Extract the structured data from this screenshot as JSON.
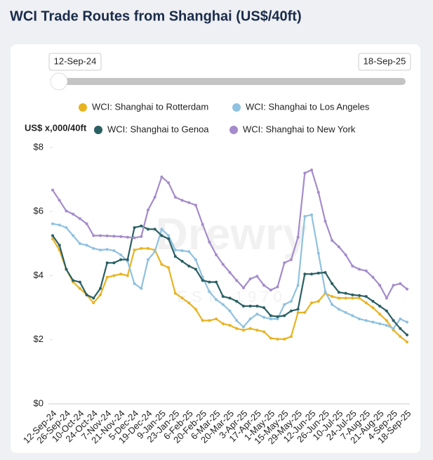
{
  "chart_data": {
    "type": "line",
    "title": "WCI Trade Routes from Shanghai (US$/40ft)",
    "y_label": "US$ x,000/40ft",
    "watermark": "Drewry",
    "watermark_sub": "EST. 1970",
    "categories": [
      "12-Sep-24",
      null,
      "26-Sep-24",
      null,
      "10-Oct-24",
      null,
      "24-Oct-24",
      null,
      "7-Nov-24",
      null,
      "21-Nov-24",
      null,
      "5-Dec-24",
      null,
      "19-Dec-24",
      null,
      "9-Jan-25",
      null,
      "23-Jan-25",
      null,
      "6-Feb-25",
      null,
      "20-Feb-25",
      null,
      "6-Mar-25",
      null,
      "20-Mar-25",
      null,
      "3-Apr-25",
      null,
      "17-Apr-25",
      null,
      "1-May-25",
      null,
      "15-May-25",
      null,
      "29-May-25",
      null,
      "12-Jun-25",
      null,
      "26-Jun-25",
      null,
      "10-Jul-25",
      null,
      "24-Jul-25",
      null,
      "7-Aug-25",
      null,
      "21-Aug-25",
      null,
      "4-Sep-25",
      null,
      "18-Sep-25"
    ],
    "series": [
      {
        "name": "WCI: Shanghai to Rotterdam",
        "color": "#e8b321",
        "values": [
          5.15,
          4.8,
          4.2,
          3.8,
          3.6,
          3.4,
          3.15,
          3.4,
          3.95,
          4.0,
          4.05,
          4.0,
          4.8,
          4.85,
          4.85,
          4.8,
          4.35,
          4.25,
          3.45,
          3.3,
          3.15,
          2.95,
          2.6,
          2.6,
          2.65,
          2.5,
          2.45,
          2.35,
          2.3,
          2.35,
          2.3,
          2.25,
          2.05,
          2.02,
          2.02,
          2.1,
          2.85,
          2.85,
          3.15,
          3.2,
          3.45,
          3.35,
          3.3,
          3.3,
          3.3,
          3.3,
          3.15,
          3.0,
          2.8,
          2.6,
          2.3,
          2.1,
          1.93
        ]
      },
      {
        "name": "WCI: Shanghai to Los Angeles",
        "color": "#8fc1e0",
        "values": [
          5.62,
          5.58,
          5.5,
          5.25,
          5.0,
          4.95,
          4.85,
          4.8,
          4.82,
          4.78,
          4.65,
          4.45,
          3.75,
          3.6,
          4.5,
          4.75,
          5.45,
          5.25,
          4.8,
          4.78,
          4.75,
          4.5,
          3.95,
          3.5,
          3.25,
          3.1,
          2.9,
          2.6,
          2.4,
          2.65,
          2.8,
          2.7,
          2.65,
          2.65,
          3.1,
          3.2,
          3.7,
          5.85,
          5.9,
          4.7,
          3.5,
          3.1,
          2.95,
          2.85,
          2.75,
          2.65,
          2.6,
          2.55,
          2.5,
          2.45,
          2.35,
          2.65,
          2.55
        ]
      },
      {
        "name": "WCI: Shanghai to Genoa",
        "color": "#2a5f63",
        "values": [
          5.25,
          4.95,
          4.2,
          3.85,
          3.8,
          3.4,
          3.3,
          3.6,
          4.4,
          4.4,
          4.5,
          4.5,
          5.5,
          5.55,
          5.45,
          5.45,
          5.25,
          5.15,
          4.6,
          4.45,
          4.3,
          4.2,
          3.85,
          3.8,
          3.8,
          3.35,
          3.3,
          3.2,
          3.05,
          3.05,
          3.05,
          3.0,
          2.75,
          2.72,
          2.75,
          2.9,
          2.95,
          4.05,
          4.05,
          4.08,
          4.1,
          3.75,
          3.48,
          3.45,
          3.4,
          3.38,
          3.35,
          3.2,
          3.05,
          2.9,
          2.6,
          2.35,
          2.15
        ]
      },
      {
        "name": "WCI: Shanghai to New York",
        "color": "#a48bcb",
        "values": [
          6.67,
          6.35,
          6.02,
          5.92,
          5.78,
          5.62,
          5.25,
          5.25,
          5.24,
          5.23,
          5.22,
          5.2,
          5.18,
          5.22,
          6.05,
          6.45,
          7.08,
          6.9,
          6.45,
          6.35,
          6.28,
          6.2,
          5.6,
          5.05,
          4.65,
          4.35,
          4.1,
          3.85,
          3.62,
          3.9,
          3.98,
          3.7,
          3.55,
          3.65,
          4.4,
          4.5,
          5.2,
          7.2,
          7.3,
          6.6,
          5.7,
          5.1,
          4.9,
          4.65,
          4.3,
          4.2,
          4.15,
          3.95,
          3.7,
          3.3,
          3.7,
          3.75,
          3.58
        ]
      }
    ],
    "ylim": [
      0,
      8
    ],
    "yticks": [
      {
        "value": 0,
        "label": "$0"
      },
      {
        "value": 2,
        "label": "$2"
      },
      {
        "value": 4,
        "label": "$4"
      },
      {
        "value": 6,
        "label": "$6"
      },
      {
        "value": 8,
        "label": "$8"
      }
    ],
    "grid": false
  }
}
